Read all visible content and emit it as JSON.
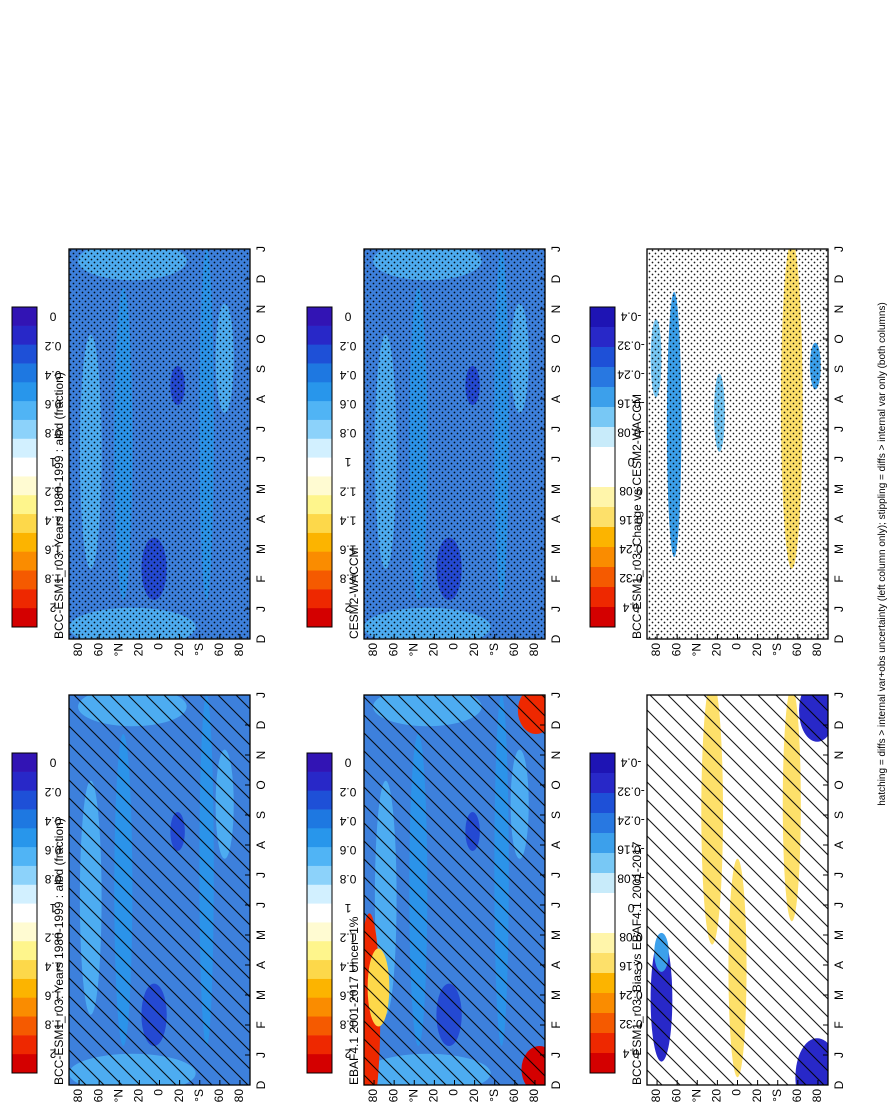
{
  "figure": {
    "footnote": "hatching = diffs > internal var+obs uncertainty (left column only); stippling = diffs > internal var only (both columns)"
  },
  "colors": {
    "abs_scale": [
      "#d40000",
      "#ee2800",
      "#f55a00",
      "#fa8c00",
      "#fcb400",
      "#fdd84a",
      "#fef58c",
      "#fffbd2",
      "#ffffff",
      "#d2f0ff",
      "#8cd2fa",
      "#50b4f5",
      "#2896eb",
      "#1e78e1",
      "#1e50d7",
      "#2828c8",
      "#3214b4"
    ],
    "diff_scale": [
      "#d40000",
      "#ee2800",
      "#f55a00",
      "#fa8c00",
      "#fcb400",
      "#fde06a",
      "#fff5aa",
      "#ffffff",
      "#ffffff",
      "#c8ebfa",
      "#78c8f5",
      "#3ca0eb",
      "#2878e1",
      "#1e50d7",
      "#2828c8",
      "#1e14b4"
    ],
    "field_base": "#3d80dc"
  },
  "chart_data": [
    {
      "type": "heatmap",
      "title": "BCC-ESM1_r03: Years 1980-1999 : albd (fraction)",
      "x_ticks": [
        "D",
        "J",
        "F",
        "M",
        "A",
        "M",
        "J",
        "J",
        "A",
        "S",
        "O",
        "N",
        "D",
        "J"
      ],
      "y_ticks": [
        "80",
        "60",
        "°N",
        "20",
        "0",
        "20",
        "°S",
        "60",
        "80"
      ],
      "colorbar": [
        "2",
        "1.8",
        "1.6",
        "1.4",
        "1.2",
        "1",
        "0.8",
        "0.6",
        "0.4",
        "0.2",
        "0"
      ],
      "zlim": [
        0,
        2.2
      ],
      "overlay": "hatching",
      "values_note": "albedo fraction, mostly 0.3–0.45"
    },
    {
      "type": "heatmap",
      "title": "BCC-ESM1_r03: Years 1980-1999 : albd (fraction)",
      "x_ticks": [
        "D",
        "J",
        "F",
        "M",
        "A",
        "M",
        "J",
        "J",
        "A",
        "S",
        "O",
        "N",
        "D",
        "J"
      ],
      "y_ticks": [
        "80",
        "60",
        "°N",
        "20",
        "0",
        "20",
        "°S",
        "60",
        "80"
      ],
      "colorbar": [
        "2",
        "1.8",
        "1.6",
        "1.4",
        "1.2",
        "1",
        "0.8",
        "0.6",
        "0.4",
        "0.2",
        "0"
      ],
      "zlim": [
        0,
        2.2
      ],
      "overlay": "stippling"
    },
    {
      "type": "heatmap",
      "title": "EBAF4.1 2001-2017 Uncer=1%",
      "x_ticks": [
        "D",
        "J",
        "F",
        "M",
        "A",
        "M",
        "J",
        "J",
        "A",
        "S",
        "O",
        "N",
        "D",
        "J"
      ],
      "y_ticks": [
        "80",
        "60",
        "°N",
        "20",
        "0",
        "20",
        "°S",
        "60",
        "80"
      ],
      "colorbar": [
        "2",
        "1.8",
        "1.6",
        "1.4",
        "1.2",
        "1",
        "0.8",
        "0.6",
        "0.4",
        "0.2",
        "0"
      ],
      "zlim": [
        0,
        2.2
      ],
      "overlay": "hatching"
    },
    {
      "type": "heatmap",
      "title": "CESM2-WACCM",
      "x_ticks": [
        "D",
        "J",
        "F",
        "M",
        "A",
        "M",
        "J",
        "J",
        "A",
        "S",
        "O",
        "N",
        "D",
        "J"
      ],
      "y_ticks": [
        "80",
        "60",
        "°N",
        "20",
        "0",
        "20",
        "°S",
        "60",
        "80"
      ],
      "colorbar": [
        "2",
        "1.8",
        "1.6",
        "1.4",
        "1.2",
        "1",
        "0.8",
        "0.6",
        "0.4",
        "0.2",
        "0"
      ],
      "zlim": [
        0,
        2.2
      ],
      "overlay": "stippling"
    },
    {
      "type": "heatmap",
      "title": "BCC-ESM1_r03: Bias vs EBAF4.1 2001-2017",
      "x_ticks": [
        "D",
        "J",
        "F",
        "M",
        "A",
        "M",
        "J",
        "J",
        "A",
        "S",
        "O",
        "N",
        "D",
        "J"
      ],
      "y_ticks": [
        "80",
        "60",
        "°N",
        "20",
        "0",
        "20",
        "°S",
        "60",
        "80"
      ],
      "colorbar": [
        "0.4",
        "0.32",
        "0.24",
        "0.16",
        "0.08",
        "0",
        "-0.08",
        "-0.16",
        "-0.24",
        "-0.32",
        "-0.4"
      ],
      "zlim": [
        -0.44,
        0.44
      ],
      "overlay": "hatching"
    },
    {
      "type": "heatmap",
      "title": "BCC-ESM1_r03: Change vs CESM2-WACCM",
      "x_ticks": [
        "D",
        "J",
        "F",
        "M",
        "A",
        "M",
        "J",
        "J",
        "A",
        "S",
        "O",
        "N",
        "D",
        "J"
      ],
      "y_ticks": [
        "80",
        "60",
        "°N",
        "20",
        "0",
        "20",
        "°S",
        "60",
        "80"
      ],
      "colorbar": [
        "0.4",
        "0.32",
        "0.24",
        "0.16",
        "0.08",
        "0",
        "-0.08",
        "-0.16",
        "-0.24",
        "-0.32",
        "-0.4"
      ],
      "zlim": [
        -0.44,
        0.44
      ],
      "overlay": "stippling"
    }
  ]
}
